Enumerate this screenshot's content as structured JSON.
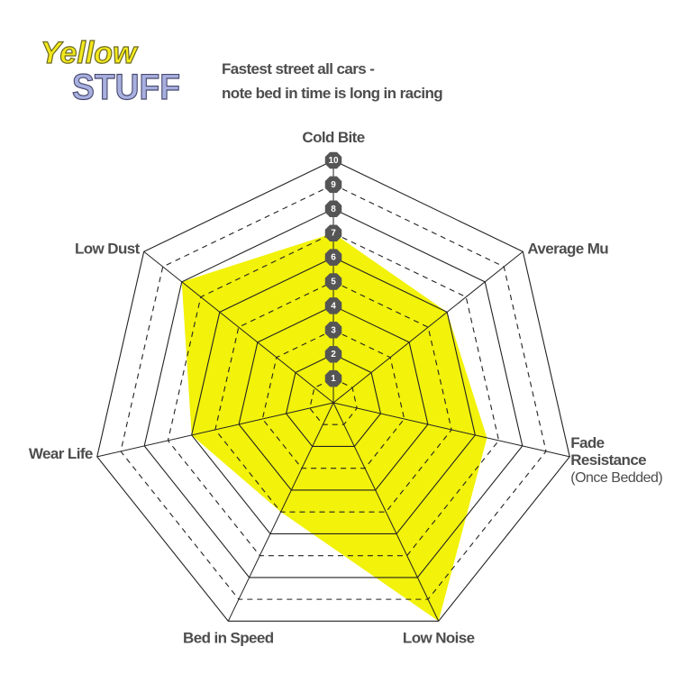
{
  "logo": {
    "top": "Yellow",
    "bottom": "STUFF"
  },
  "chart_data": {
    "type": "radar",
    "title": [
      "Fastest street all cars -",
      "note bed in time is long in racing"
    ],
    "categories": [
      "Cold Bite",
      "Average Mu",
      "Fade Resistance",
      "Low Noise",
      "Bed in Speed",
      "Wear Life",
      "Low Dust"
    ],
    "annotation": "(Once Bedded)",
    "values": [
      7,
      6,
      6.5,
      10,
      5,
      6,
      8
    ],
    "color": "#f2f20a",
    "ylim": [
      0,
      10
    ],
    "yticks": [
      1,
      2,
      3,
      4,
      5,
      6,
      7,
      8,
      9,
      10
    ],
    "grid": true
  }
}
